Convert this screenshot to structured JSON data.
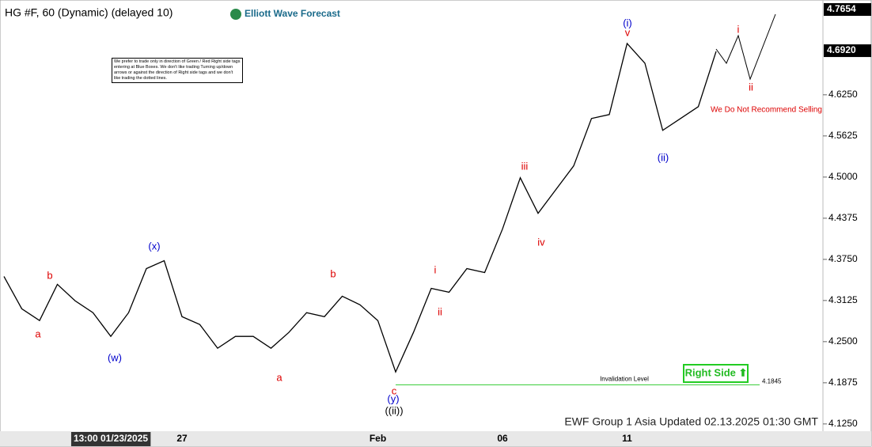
{
  "chart_data": {
    "type": "line",
    "title": "HG #F, 60 (Dynamic) (delayed 10)",
    "brand": "Elliott Wave Forecast",
    "note": "We prefer to trade only in direction of Green / Red Right side tags entering at Blue Boxes. We don't like trading Turning up/down arrows or against the direction of Right side tags and we don't like trading the dotted lines.",
    "categories": [
      null,
      null,
      null,
      null,
      null,
      null,
      "13:00 01/23/2025",
      null,
      null,
      null,
      "27",
      null,
      null,
      null,
      null,
      null,
      null,
      null,
      null,
      null,
      null,
      "Feb",
      null,
      null,
      null,
      null,
      null,
      null,
      "06",
      null,
      null,
      null,
      null,
      null,
      null,
      "11",
      null,
      null,
      null,
      null,
      null
    ],
    "values": [
      4.349,
      4.3,
      4.282,
      4.337,
      4.312,
      4.294,
      4.258,
      4.294,
      4.361,
      4.373,
      4.288,
      4.276,
      4.24,
      4.258,
      4.258,
      4.24,
      4.264,
      4.294,
      4.288,
      4.319,
      4.306,
      4.282,
      4.204,
      4.264,
      4.331,
      4.325,
      4.361,
      4.355,
      4.421,
      4.499,
      4.445,
      4.481,
      4.517,
      4.589,
      4.595,
      4.703,
      4.673,
      4.571,
      4.589,
      4.607,
      4.691
    ],
    "color": "#000000",
    "ylim": [
      4.114,
      4.763
    ],
    "yticks": [
      {
        "value": 4.125,
        "label": "4.1250"
      },
      {
        "value": 4.1875,
        "label": "4.1875"
      },
      {
        "value": 4.25,
        "label": "4.2500"
      },
      {
        "value": 4.3125,
        "label": "4.3125"
      },
      {
        "value": 4.375,
        "label": "4.3750"
      },
      {
        "value": 4.4375,
        "label": "4.4375"
      },
      {
        "value": 4.5,
        "label": "4.5000"
      },
      {
        "value": 4.5625,
        "label": "4.5625"
      },
      {
        "value": 4.625,
        "label": "4.6250"
      }
    ],
    "price_labels": [
      {
        "value": 4.7654,
        "label": "4.7654"
      },
      {
        "value": 4.692,
        "label": "4.6920"
      }
    ],
    "invalidation": {
      "label": "Invalidation Level",
      "value": 4.1845,
      "color": "#33cc33"
    },
    "wave_labels": [
      {
        "text": "a",
        "color": "#dd0000"
      },
      {
        "text": "b",
        "color": "#dd0000"
      },
      {
        "text": "(w)",
        "color": "#0000cc"
      },
      {
        "text": "(x)",
        "color": "#0000cc"
      },
      {
        "text": "a",
        "color": "#dd0000"
      },
      {
        "text": "b",
        "color": "#dd0000"
      },
      {
        "text": "c",
        "color": "#dd0000"
      },
      {
        "text": "(y)",
        "color": "#0000cc"
      },
      {
        "text": "((ii))",
        "color": "#000000"
      },
      {
        "text": "i",
        "color": "#dd0000"
      },
      {
        "text": "ii",
        "color": "#dd0000"
      },
      {
        "text": "iii",
        "color": "#dd0000"
      },
      {
        "text": "iv",
        "color": "#dd0000"
      },
      {
        "text": "(i)",
        "color": "#0000cc"
      },
      {
        "text": "v",
        "color": "#dd0000"
      },
      {
        "text": "(ii)",
        "color": "#0000cc"
      },
      {
        "text": "i",
        "color": "#dd0000"
      },
      {
        "text": "ii",
        "color": "#dd0000"
      }
    ],
    "recommendation": "We Do Not Recommend Selling",
    "side_tag": "Right Side ⬆",
    "footer": "EWF Group 1 Asia Updated 02.13.2025 01:30 GMT"
  }
}
